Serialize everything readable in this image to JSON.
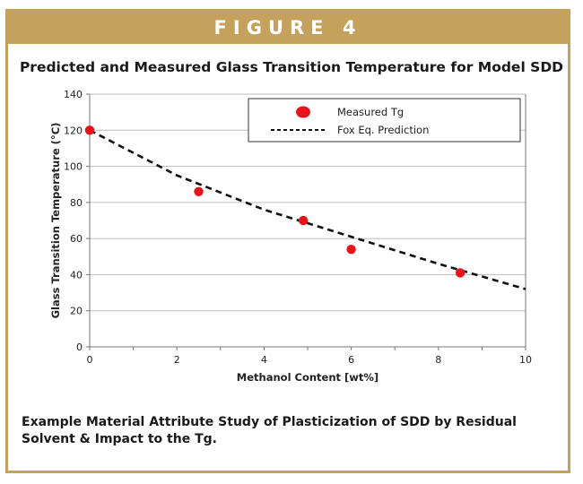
{
  "banner": "FIGURE 4",
  "caption": "Example Material Attribute Study of Plasticization of SDD by Residual Solvent & Impact to the Tg.",
  "colors": {
    "frame": "#c4a25e",
    "marker": "#e8141c",
    "grid": "#bdbdbd",
    "axis": "#777777"
  },
  "chart_data": {
    "type": "scatter",
    "title": "Predicted and Measured Glass Transition Temperature for Model SDD",
    "xlabel": "Methanol Content [wt%]",
    "ylabel": "Glass Transition Temperature (°C)",
    "xlim": [
      0,
      10
    ],
    "ylim": [
      0,
      140
    ],
    "xticks": [
      0,
      2,
      4,
      6,
      8,
      10
    ],
    "yticks": [
      0,
      20,
      40,
      60,
      80,
      100,
      120,
      140
    ],
    "grid": "horizontal",
    "legend_position": "top-right",
    "series": [
      {
        "name": "Measured Tg",
        "style": "markers",
        "x": [
          0,
          2.5,
          4.9,
          6.0,
          8.5
        ],
        "y": [
          120,
          86,
          70,
          54,
          41
        ]
      },
      {
        "name": "Fox Eq. Prediction",
        "style": "dashed-line",
        "x": [
          0,
          2,
          4,
          6,
          8,
          10
        ],
        "y": [
          120,
          95,
          76,
          61,
          46,
          32
        ]
      }
    ]
  }
}
